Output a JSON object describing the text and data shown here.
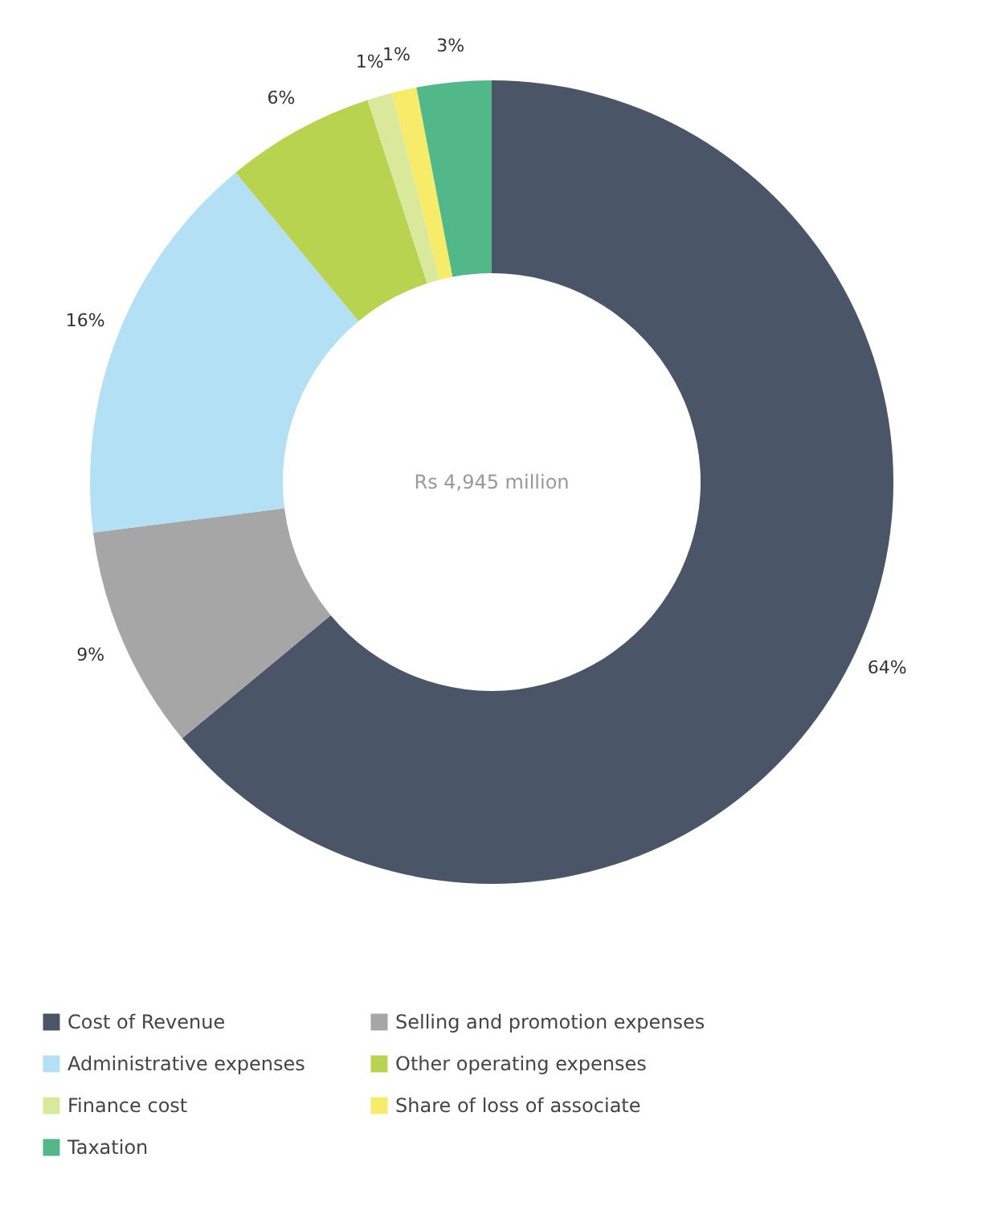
{
  "chart_data": {
    "type": "donut",
    "categories": [
      "Cost of Revenue",
      "Selling and promotion expenses",
      "Administrative expenses",
      "Other operating expenses",
      "Finance cost",
      "Share of loss of associate",
      "Taxation"
    ],
    "values": [
      64,
      9,
      16,
      6,
      1,
      1,
      3
    ],
    "colors": [
      "#4a5568",
      "#a6a6a6",
      "#b3e0f5",
      "#b8d34f",
      "#d9e89a",
      "#f7ec6a",
      "#52b88a"
    ],
    "value_labels": [
      "64%",
      "9%",
      "16%",
      "6%",
      "1%",
      "1%",
      "3%"
    ],
    "annotations": [
      "Rs 4,945 million"
    ],
    "legend": "bottom"
  }
}
